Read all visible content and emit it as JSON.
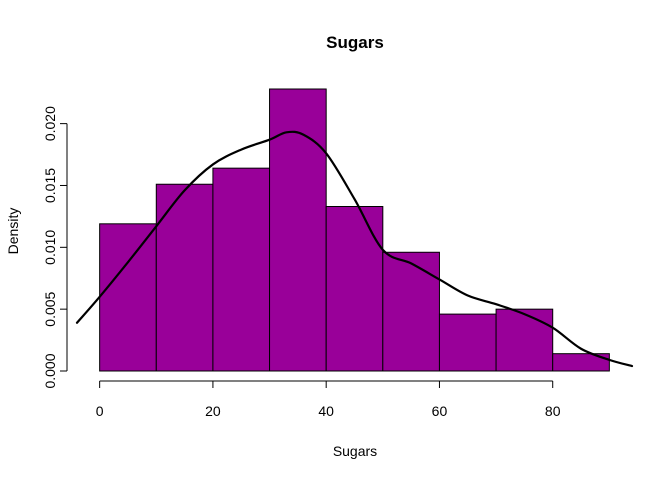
{
  "chart_data": {
    "type": "bar",
    "title": "Sugars",
    "xlabel": "Sugars",
    "ylabel": "Density",
    "bins": [
      {
        "start": 0,
        "end": 10,
        "density": 0.0119
      },
      {
        "start": 10,
        "end": 20,
        "density": 0.0151
      },
      {
        "start": 20,
        "end": 30,
        "density": 0.0164
      },
      {
        "start": 30,
        "end": 40,
        "density": 0.0228
      },
      {
        "start": 40,
        "end": 50,
        "density": 0.0133
      },
      {
        "start": 50,
        "end": 60,
        "density": 0.0096
      },
      {
        "start": 60,
        "end": 70,
        "density": 0.0046
      },
      {
        "start": 70,
        "end": 80,
        "density": 0.005
      },
      {
        "start": 80,
        "end": 90,
        "density": 0.0014
      }
    ],
    "density_curve": {
      "x": [
        -4,
        0,
        5,
        10,
        15,
        20,
        25,
        30,
        33,
        36,
        40,
        45,
        50,
        55,
        60,
        65,
        70,
        75,
        80,
        85,
        90,
        94
      ],
      "y": [
        0.0039,
        0.006,
        0.0088,
        0.0117,
        0.0146,
        0.0167,
        0.0179,
        0.0187,
        0.0193,
        0.0191,
        0.0176,
        0.0139,
        0.0098,
        0.0087,
        0.0074,
        0.0061,
        0.0054,
        0.0046,
        0.0035,
        0.0018,
        0.0009,
        0.0004
      ]
    },
    "xlim": [
      -4,
      94
    ],
    "ylim": [
      0,
      0.0228
    ],
    "x_ticks": [
      0,
      20,
      40,
      60,
      80
    ],
    "x_tick_labels": [
      "0",
      "20",
      "40",
      "60",
      "80"
    ],
    "y_ticks": [
      0,
      0.005,
      0.01,
      0.015,
      0.02
    ],
    "y_tick_labels": [
      "0.000",
      "0.005",
      "0.010",
      "0.015",
      "0.020"
    ],
    "bar_color": "#990099",
    "curve_color": "#000000",
    "grid": false,
    "legend": "none"
  }
}
